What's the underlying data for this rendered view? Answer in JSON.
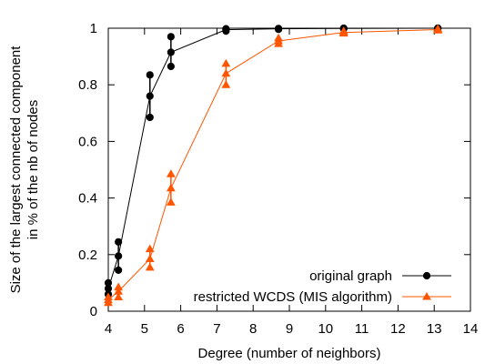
{
  "chart_data": {
    "type": "line",
    "title": "",
    "xlabel": "Degree (number of neighbors)",
    "ylabel_lines": [
      "Size of the largest connected component",
      "in % of the nb of nodes"
    ],
    "xlim": [
      4,
      14
    ],
    "ylim": [
      0,
      1
    ],
    "xticks": [
      4,
      5,
      6,
      7,
      8,
      9,
      10,
      11,
      12,
      13,
      14
    ],
    "yticks": [
      0,
      0.2,
      0.4,
      0.6,
      0.8,
      1
    ],
    "ytick_labels": [
      "0",
      "0.2",
      "0.4",
      "0.6",
      "0.8",
      "1"
    ],
    "legend_position": "bottom-right",
    "grid": false,
    "series": [
      {
        "name": "original graph",
        "color": "#000000",
        "marker": "circle",
        "x": [
          4.0,
          4.28,
          5.15,
          5.73,
          7.25,
          8.7,
          10.5,
          13.1
        ],
        "y": [
          0.08,
          0.195,
          0.76,
          0.915,
          0.995,
          0.998,
          0.999,
          1.0
        ],
        "err_low": [
          0.06,
          0.145,
          0.685,
          0.865,
          0.99,
          0.996,
          0.998,
          0.999
        ],
        "err_high": [
          0.1,
          0.245,
          0.835,
          0.97,
          0.998,
          0.999,
          1.0,
          1.0
        ]
      },
      {
        "name": "restricted WCDS (MIS algorithm)",
        "color": "#ff5500",
        "marker": "triangle",
        "x": [
          4.0,
          4.28,
          5.15,
          5.73,
          7.25,
          8.7,
          10.5,
          13.1
        ],
        "y": [
          0.04,
          0.07,
          0.185,
          0.435,
          0.84,
          0.955,
          0.985,
          0.995
        ],
        "err_low": [
          0.03,
          0.05,
          0.155,
          0.385,
          0.8,
          0.945,
          0.982,
          0.993
        ],
        "err_high": [
          0.05,
          0.085,
          0.22,
          0.485,
          0.875,
          0.965,
          0.99,
          0.998
        ]
      }
    ]
  }
}
